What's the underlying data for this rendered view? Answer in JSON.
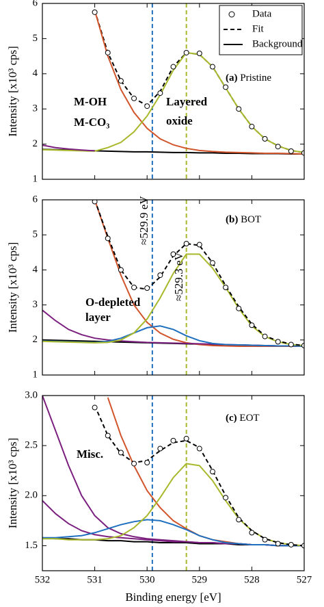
{
  "chart_data": [
    {
      "type": "line",
      "panel": "(a)",
      "sample": "Pristine",
      "ylabel": "Intensity [x10³ cps]",
      "legend": "upper right",
      "x": [
        532,
        531.75,
        531.5,
        531.25,
        531,
        530.75,
        530.5,
        530.25,
        530,
        529.75,
        529.5,
        529.25,
        529,
        528.75,
        528.5,
        528.25,
        528,
        527.75,
        527.5,
        527.25,
        527
      ],
      "xlim": [
        532,
        527
      ],
      "xticks": [
        532,
        531,
        530,
        529,
        528,
        527
      ],
      "ylim": [
        1,
        6
      ],
      "yticks": [
        1,
        2,
        3,
        4,
        5,
        6
      ],
      "vlines": [
        {
          "value": 529.9,
          "color": "#1f6fbf"
        },
        {
          "value": 529.25,
          "color": "#a8b82a"
        }
      ],
      "series": [
        {
          "name": "Data",
          "marker": "o",
          "color": "#000000",
          "values": [
            null,
            null,
            null,
            null,
            5.75,
            4.6,
            3.8,
            3.3,
            3.08,
            3.45,
            4.2,
            4.6,
            4.58,
            4.2,
            3.62,
            3.0,
            2.5,
            2.15,
            1.93,
            1.8,
            1.75
          ]
        },
        {
          "name": "Fit",
          "dash": true,
          "color": "#000000",
          "values": [
            null,
            null,
            null,
            null,
            5.8,
            4.6,
            3.8,
            3.3,
            3.1,
            3.5,
            4.2,
            4.6,
            4.55,
            4.2,
            3.6,
            3.0,
            2.5,
            2.15,
            1.95,
            1.82,
            1.76
          ]
        },
        {
          "name": "Background",
          "color": "#000000",
          "values": [
            1.85,
            1.84,
            1.83,
            1.82,
            1.81,
            1.8,
            1.79,
            1.78,
            1.78,
            1.77,
            1.76,
            1.76,
            1.75,
            1.75,
            1.74,
            1.74,
            1.73,
            1.73,
            1.73,
            1.72,
            1.72
          ]
        },
        {
          "color": "#d2542a",
          "values": [
            null,
            null,
            null,
            null,
            5.8,
            4.5,
            3.55,
            2.9,
            2.45,
            2.15,
            1.98,
            1.88,
            1.82,
            1.79,
            1.77,
            1.76,
            1.75,
            1.74,
            1.74,
            1.73,
            1.72
          ]
        },
        {
          "color": "#a8b82a",
          "values": [
            1.84,
            1.83,
            1.82,
            1.81,
            1.8,
            1.9,
            2.05,
            2.35,
            2.8,
            3.4,
            4.1,
            4.6,
            4.55,
            4.2,
            3.6,
            3.0,
            2.5,
            2.15,
            1.95,
            1.82,
            1.76
          ]
        },
        {
          "color": "#7b1f7f",
          "values": [
            1.97,
            1.9,
            1.86,
            1.83,
            1.81,
            null,
            null,
            null,
            null,
            null,
            null,
            null,
            null,
            null,
            null,
            null,
            null,
            null,
            null,
            null,
            null
          ]
        }
      ],
      "annotations": [
        {
          "text": "M-OH",
          "color": "#d2542a"
        },
        {
          "text": "M-CO₃",
          "color": "#d2542a"
        },
        {
          "text": "Layered",
          "color": "#a8b82a"
        },
        {
          "text": "oxide",
          "color": "#a8b82a"
        }
      ]
    },
    {
      "type": "line",
      "panel": "(b)",
      "sample": "BOT",
      "ylabel": "Intensity [x10³ cps]",
      "x": [
        532,
        531.75,
        531.5,
        531.25,
        531,
        530.75,
        530.5,
        530.25,
        530,
        529.75,
        529.5,
        529.25,
        529,
        528.75,
        528.5,
        528.25,
        528,
        527.75,
        527.5,
        527.25,
        527
      ],
      "xlim": [
        532,
        527
      ],
      "xticks": [
        532,
        531,
        530,
        529,
        528,
        527
      ],
      "ylim": [
        1,
        6
      ],
      "yticks": [
        1,
        2,
        3,
        4,
        5,
        6
      ],
      "vlines": [
        {
          "value": 529.9,
          "color": "#1f6fbf"
        },
        {
          "value": 529.25,
          "color": "#a8b82a"
        }
      ],
      "series": [
        {
          "color": "#000000",
          "values": [
            2.0,
            1.99,
            1.98,
            1.97,
            1.96,
            1.95,
            1.94,
            1.93,
            1.92,
            1.91,
            1.9,
            1.89,
            1.88,
            1.87,
            1.86,
            1.86,
            1.85,
            1.84,
            1.83,
            1.83,
            1.82
          ]
        },
        {
          "color": "#d2542a",
          "values": [
            null,
            null,
            null,
            null,
            6.0,
            4.9,
            3.85,
            3.0,
            2.5,
            2.2,
            2.02,
            1.92,
            1.87,
            1.84,
            1.83,
            1.82,
            1.82,
            1.82,
            1.82,
            1.82,
            1.82
          ]
        },
        {
          "color": "#7b1f7f",
          "values": [
            2.85,
            2.55,
            2.3,
            2.15,
            2.05,
            2.0,
            1.97,
            1.95,
            1.93,
            1.92,
            1.91,
            1.9,
            1.89,
            1.88,
            1.87,
            1.86,
            1.85,
            1.84,
            1.83,
            1.83,
            1.82
          ]
        },
        {
          "color": "#1f6fbf",
          "values": [
            1.97,
            1.96,
            1.95,
            1.94,
            1.93,
            1.96,
            2.05,
            2.2,
            2.35,
            2.4,
            2.3,
            2.12,
            1.98,
            1.9,
            1.87,
            1.86,
            1.85,
            1.84,
            1.83,
            1.83,
            1.82
          ]
        },
        {
          "color": "#a8b82a",
          "values": [
            1.96,
            1.95,
            1.94,
            1.93,
            1.92,
            1.93,
            2.0,
            2.2,
            2.6,
            3.2,
            3.9,
            4.45,
            4.45,
            4.05,
            3.5,
            2.9,
            2.4,
            2.1,
            1.95,
            1.87,
            1.84
          ]
        },
        {
          "dash": true,
          "color": "#000000",
          "values": [
            null,
            null,
            null,
            null,
            6.0,
            4.95,
            4.0,
            3.5,
            3.45,
            3.8,
            4.4,
            4.75,
            4.7,
            4.2,
            3.55,
            2.95,
            2.45,
            2.12,
            1.97,
            1.88,
            1.84
          ]
        },
        {
          "marker": "o",
          "color": "#000000",
          "values": [
            null,
            null,
            null,
            null,
            5.95,
            4.9,
            4.0,
            3.5,
            3.48,
            3.85,
            4.45,
            4.75,
            4.72,
            4.2,
            3.5,
            2.9,
            2.42,
            2.1,
            1.95,
            1.87,
            1.84
          ]
        }
      ],
      "annotations": [
        {
          "text": "≈529.9 eV",
          "color": "#000000"
        },
        {
          "text": "≈529.3 eV",
          "color": "#000000"
        },
        {
          "text": "O-depleted",
          "color": "#1f6fbf"
        },
        {
          "text": "layer",
          "color": "#1f6fbf"
        }
      ]
    },
    {
      "type": "line",
      "panel": "(c)",
      "sample": "EOT",
      "ylabel": "Intensity [x10³ cps]",
      "xlabel": "Binding energy [eV]",
      "x": [
        532,
        531.75,
        531.5,
        531.25,
        531,
        530.75,
        530.5,
        530.25,
        530,
        529.75,
        529.5,
        529.25,
        529,
        528.75,
        528.5,
        528.25,
        528,
        527.75,
        527.5,
        527.25,
        527
      ],
      "xlim": [
        532,
        527
      ],
      "xticks": [
        532,
        531,
        530,
        529,
        528,
        527
      ],
      "ylim": [
        1.25,
        3.0
      ],
      "yticks": [
        1.5,
        {
          "value": 2,
          "label": "2.0"
        },
        2.5,
        {
          "value": 3,
          "label": "3.0"
        }
      ],
      "vlines": [
        {
          "value": 529.9,
          "color": "#1f6fbf"
        },
        {
          "value": 529.25,
          "color": "#a8b82a"
        }
      ],
      "series": [
        {
          "color": "#000000",
          "values": [
            1.58,
            1.57,
            1.57,
            1.56,
            1.56,
            1.55,
            1.55,
            1.54,
            1.54,
            1.53,
            1.53,
            1.53,
            1.52,
            1.52,
            1.52,
            1.51,
            1.51,
            1.51,
            1.5,
            1.5,
            1.5
          ]
        },
        {
          "color": "#d2542a",
          "values": [
            null,
            null,
            null,
            null,
            null,
            2.98,
            2.6,
            2.3,
            2.05,
            1.88,
            1.75,
            1.67,
            1.6,
            1.56,
            1.54,
            1.52,
            1.51,
            1.51,
            1.5,
            1.5,
            1.5
          ]
        },
        {
          "color": "#7b1f7f",
          "values": [
            3.0,
            2.65,
            2.3,
            2.0,
            1.8,
            1.68,
            1.62,
            1.59,
            1.57,
            1.56,
            1.55,
            1.54,
            1.53,
            1.53,
            1.52,
            1.52,
            1.51,
            1.51,
            1.5,
            1.5,
            1.5
          ]
        },
        {
          "color": "#7b1f7f",
          "values": [
            1.95,
            1.82,
            1.72,
            1.65,
            1.61,
            1.59,
            1.58,
            1.57,
            1.56,
            1.55,
            1.54,
            1.54,
            1.53,
            1.53,
            1.52,
            1.52,
            1.51,
            1.51,
            1.5,
            1.5,
            1.5
          ]
        },
        {
          "color": "#1f6fbf",
          "values": [
            1.58,
            1.58,
            1.59,
            1.6,
            1.63,
            1.67,
            1.71,
            1.74,
            1.76,
            1.75,
            1.71,
            1.66,
            1.6,
            1.56,
            1.53,
            1.52,
            1.51,
            1.51,
            1.5,
            1.5,
            1.5
          ]
        },
        {
          "color": "#a8b82a",
          "values": [
            1.57,
            1.57,
            1.56,
            1.56,
            1.56,
            1.57,
            1.6,
            1.68,
            1.8,
            1.98,
            2.18,
            2.32,
            2.3,
            2.15,
            1.95,
            1.77,
            1.65,
            1.57,
            1.53,
            1.51,
            1.5
          ]
        },
        {
          "dash": true,
          "color": "#000000",
          "values": [
            null,
            null,
            null,
            null,
            2.9,
            2.6,
            2.42,
            2.33,
            2.35,
            2.45,
            2.53,
            2.55,
            2.48,
            2.25,
            2.0,
            1.78,
            1.65,
            1.57,
            1.53,
            1.51,
            1.5
          ]
        },
        {
          "marker": "o",
          "color": "#000000",
          "values": [
            null,
            null,
            null,
            null,
            2.88,
            2.6,
            2.43,
            2.32,
            2.33,
            2.47,
            2.55,
            2.57,
            2.47,
            2.24,
            1.98,
            1.76,
            1.63,
            1.56,
            1.52,
            1.51,
            1.5
          ]
        }
      ],
      "annotations": [
        {
          "text": "Misc.",
          "color": "#7b1f7f"
        }
      ]
    }
  ]
}
